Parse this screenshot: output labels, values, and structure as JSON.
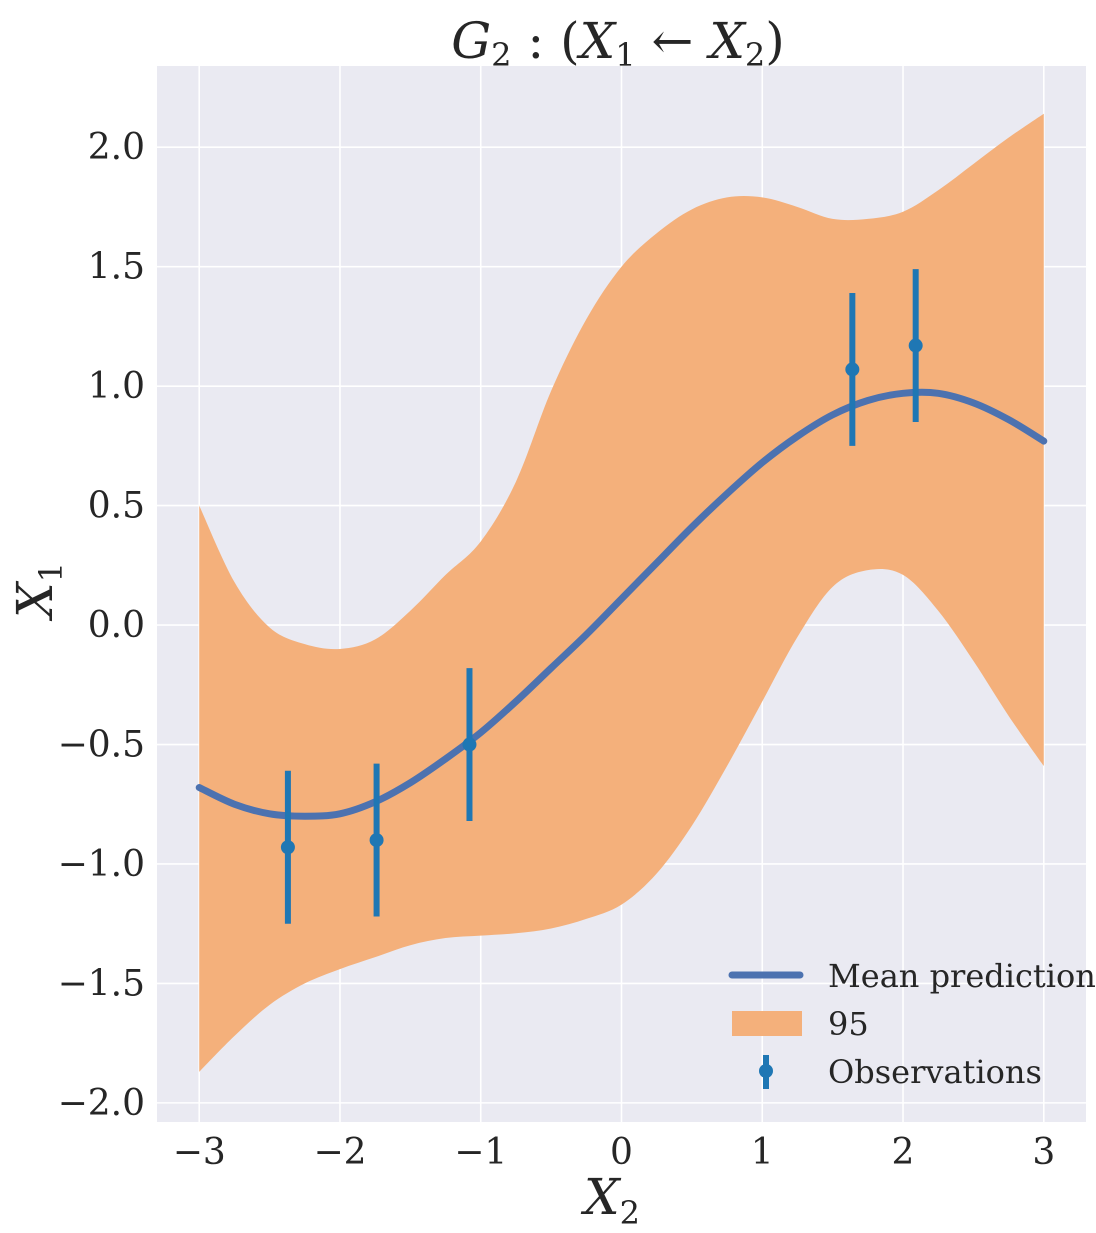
{
  "chart_data": {
    "type": "line",
    "title_parts": {
      "g": "G",
      "gsub": "2",
      "mid": " : (",
      "x1": "X",
      "x1sub": "1",
      "arrow": " ← ",
      "x2": "X",
      "x2sub": "2",
      "end": ")"
    },
    "xlabel_parts": {
      "main": "X",
      "sub": "2"
    },
    "ylabel_parts": {
      "main": "X",
      "sub": "1"
    },
    "xlim": [
      -3.3,
      3.3
    ],
    "ylim": [
      -2.08,
      2.34
    ],
    "xticks": [
      -3,
      -2,
      -1,
      0,
      1,
      2,
      3
    ],
    "xtick_labels": [
      "−3",
      "−2",
      "−1",
      "0",
      "1",
      "2",
      "3"
    ],
    "yticks": [
      -2.0,
      -1.5,
      -1.0,
      -0.5,
      0.0,
      0.5,
      1.0,
      1.5,
      2.0
    ],
    "ytick_labels": [
      "−2.0",
      "−1.5",
      "−1.0",
      "−0.5",
      "0.0",
      "0.5",
      "1.0",
      "1.5",
      "2.0"
    ],
    "grid": true,
    "legend_position": "bottom-right",
    "colors": {
      "background": "#eaeaf2",
      "grid": "#ffffff",
      "mean": "#4c72b0",
      "band": "#f4b07b",
      "obs": "#1f77b4"
    },
    "series": [
      {
        "name": "Mean prediction",
        "kind": "line",
        "x": [
          -3.0,
          -2.75,
          -2.5,
          -2.25,
          -2.0,
          -1.75,
          -1.5,
          -1.25,
          -1.0,
          -0.75,
          -0.5,
          -0.25,
          0.0,
          0.25,
          0.5,
          0.75,
          1.0,
          1.25,
          1.5,
          1.75,
          2.0,
          2.25,
          2.5,
          2.75,
          3.0
        ],
        "y": [
          -0.68,
          -0.75,
          -0.79,
          -0.8,
          -0.79,
          -0.74,
          -0.66,
          -0.56,
          -0.45,
          -0.32,
          -0.18,
          -0.04,
          0.11,
          0.26,
          0.41,
          0.55,
          0.68,
          0.79,
          0.88,
          0.94,
          0.97,
          0.97,
          0.93,
          0.86,
          0.77
        ]
      },
      {
        "name": "95",
        "kind": "band",
        "x": [
          -3.0,
          -2.75,
          -2.5,
          -2.25,
          -2.0,
          -1.75,
          -1.5,
          -1.25,
          -1.0,
          -0.75,
          -0.5,
          -0.25,
          0.0,
          0.25,
          0.5,
          0.75,
          1.0,
          1.25,
          1.5,
          1.75,
          2.0,
          2.25,
          2.5,
          2.75,
          3.0
        ],
        "lower": [
          -1.87,
          -1.72,
          -1.59,
          -1.5,
          -1.44,
          -1.39,
          -1.34,
          -1.31,
          -1.3,
          -1.29,
          -1.27,
          -1.23,
          -1.17,
          -1.04,
          -0.84,
          -0.59,
          -0.32,
          -0.05,
          0.16,
          0.23,
          0.21,
          0.06,
          -0.15,
          -0.38,
          -0.59
        ],
        "upper": [
          0.5,
          0.18,
          -0.01,
          -0.08,
          -0.1,
          -0.06,
          0.06,
          0.21,
          0.35,
          0.6,
          0.98,
          1.28,
          1.5,
          1.64,
          1.74,
          1.79,
          1.79,
          1.75,
          1.7,
          1.7,
          1.73,
          1.82,
          1.93,
          2.04,
          2.14
        ]
      },
      {
        "name": "Observations",
        "kind": "errorbar",
        "x": [
          -2.37,
          -1.74,
          -1.08,
          1.64,
          2.09
        ],
        "y": [
          -0.93,
          -0.9,
          -0.5,
          1.07,
          1.17
        ],
        "err": [
          0.32,
          0.32,
          0.32,
          0.32,
          0.32
        ]
      }
    ],
    "legend": [
      "Mean prediction",
      "95",
      "Observations"
    ]
  }
}
